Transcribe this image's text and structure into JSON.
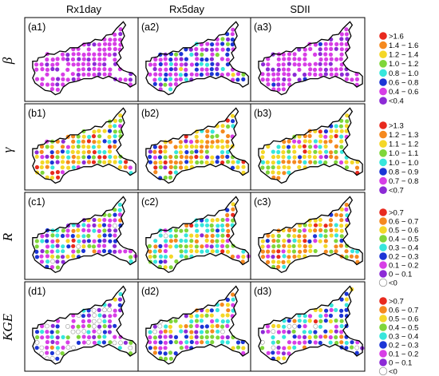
{
  "columns": [
    "Rx1day",
    "Rx5day",
    "SDII"
  ],
  "rows": [
    {
      "label": "β",
      "panels": [
        "(a1)",
        "(a2)",
        "(a3)"
      ],
      "legend": [
        {
          "label": ">1.6",
          "color": "#e8291e"
        },
        {
          "label": "1.4 − 1.6",
          "color": "#f5891f"
        },
        {
          "label": "1.2 − 1.4",
          "color": "#f4d727"
        },
        {
          "label": "1.0 − 1.2",
          "color": "#7fd63a"
        },
        {
          "label": "0.8 − 1.0",
          "color": "#37e6dc"
        },
        {
          "label": "0.6 − 0.8",
          "color": "#1c35d6"
        },
        {
          "label": "0.4 − 0.6",
          "color": "#d73ee6"
        },
        {
          "label": "<0.4",
          "color": "#8c2ad6"
        }
      ]
    },
    {
      "label": "γ",
      "panels": [
        "(b1)",
        "(b2)",
        "(b3)"
      ],
      "legend": [
        {
          "label": ">1.3",
          "color": "#e8291e"
        },
        {
          "label": "1.2 − 1.3",
          "color": "#f5891f"
        },
        {
          "label": "1.1 − 1.2",
          "color": "#f4d727"
        },
        {
          "label": "1.0 − 1.1",
          "color": "#7fd63a"
        },
        {
          "label": "1.0 − 1.0",
          "color": "#37e6dc"
        },
        {
          "label": "0.8 − 0.9",
          "color": "#1c35d6"
        },
        {
          "label": "0.7 − 0.8",
          "color": "#d73ee6"
        },
        {
          "label": "<0.7",
          "color": "#8c2ad6"
        }
      ]
    },
    {
      "label": "R",
      "panels": [
        "(c1)",
        "(c2)",
        "(c3)"
      ],
      "legend": [
        {
          "label": ">0.7",
          "color": "#e8291e"
        },
        {
          "label": "0.6 − 0.7",
          "color": "#f5891f"
        },
        {
          "label": "0.5 − 0.6",
          "color": "#f4d727"
        },
        {
          "label": "0.4 − 0.5",
          "color": "#7fd63a"
        },
        {
          "label": "0.3 − 0.4",
          "color": "#37e6dc"
        },
        {
          "label": "0.2 − 0.3",
          "color": "#1c35d6"
        },
        {
          "label": "0.1 − 0.2",
          "color": "#d73ee6"
        },
        {
          "label": "0 − 0.1",
          "color": "#8c2ad6"
        },
        {
          "label": "<0",
          "color": "#ffffff"
        }
      ]
    },
    {
      "label": "KGE",
      "panels": [
        "(d1)",
        "(d2)",
        "(d3)"
      ],
      "legend": [
        {
          "label": ">0.7",
          "color": "#e8291e"
        },
        {
          "label": "0.6 − 0.7",
          "color": "#f5891f"
        },
        {
          "label": "0.5 − 0.6",
          "color": "#f4d727"
        },
        {
          "label": "0.4 − 0.5",
          "color": "#7fd63a"
        },
        {
          "label": "0.3 − 0.4",
          "color": "#37e6dc"
        },
        {
          "label": "0.2 − 0.3",
          "color": "#1c35d6"
        },
        {
          "label": "0.1 − 0.2",
          "color": "#d73ee6"
        },
        {
          "label": "0 − 0.1",
          "color": "#8c2ad6"
        },
        {
          "label": "<0",
          "color": "#ffffff"
        }
      ]
    }
  ],
  "chart_data": {
    "type": "scatter",
    "panel_grid": "4 rows × 3 columns of station maps",
    "dominant_class_per_panel": {
      "a1": "0.4 − 0.6",
      "a2": "0.4 − 0.6",
      "a3": "0.4 − 0.6",
      "b1": "mixed",
      "b2": "mixed",
      "b3": "mixed",
      "c1": "mixed",
      "c2": "mixed",
      "c3": "mixed",
      "d1": "mixed",
      "d2": "mixed",
      "d3": "mixed"
    }
  }
}
